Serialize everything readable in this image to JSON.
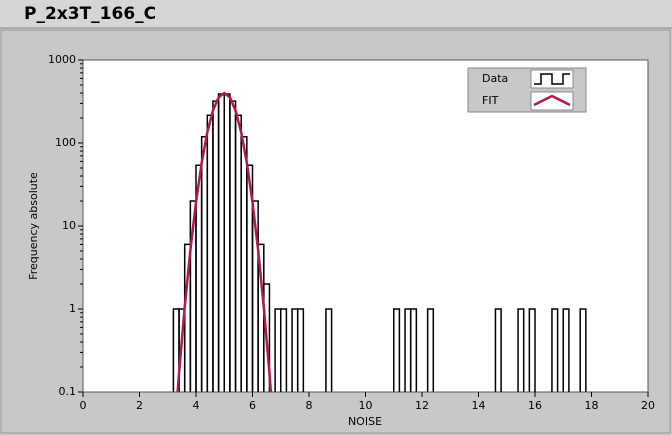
{
  "chart_data": {
    "type": "histogram",
    "title": "P_2x3T_166_C",
    "x_label": "NOISE",
    "y_label": "Frequency absolute",
    "xlim": [
      0,
      20
    ],
    "xticks": [
      0,
      2,
      4,
      6,
      8,
      10,
      12,
      14,
      16,
      18,
      20
    ],
    "ylim": [
      0.1,
      1000
    ],
    "yticks": [
      0.1,
      1,
      10,
      100,
      1000
    ],
    "log_y": true,
    "legend": "top-right",
    "series": [
      {
        "name": "Data",
        "color": "#000000",
        "bins": [
          3.2,
          3.4,
          3.6,
          3.8,
          4.0,
          4.2,
          4.4,
          4.6,
          4.8,
          5.0,
          5.2,
          5.4,
          5.6,
          5.8,
          6.0,
          6.2,
          6.4,
          6.6,
          6.8,
          7.0,
          7.2,
          7.4,
          7.6,
          7.8,
          8.0,
          8.2,
          8.4,
          8.6,
          8.8,
          9.0,
          9.2,
          9.4,
          9.6,
          9.8,
          10.0,
          10.2,
          10.4,
          10.6,
          10.8,
          11.0,
          11.2,
          11.4,
          11.6,
          11.8,
          12.0,
          12.2,
          12.4,
          12.6,
          12.8,
          13.0,
          13.2,
          13.4,
          13.6,
          13.8,
          14.0,
          14.2,
          14.4,
          14.6,
          14.8,
          15.0,
          15.2,
          15.4,
          15.6,
          15.8,
          16.0,
          16.2,
          16.4,
          16.6,
          16.8,
          17.0,
          17.2,
          17.4,
          17.6,
          17.8,
          18.0
        ],
        "values": [
          1,
          1,
          6,
          20,
          54,
          119,
          216,
          320,
          390,
          390,
          320,
          216,
          119,
          54,
          20,
          6,
          2,
          0,
          1,
          1,
          0,
          1,
          1,
          0,
          0,
          0,
          0,
          1,
          0,
          0,
          0,
          0,
          0,
          0,
          0,
          0,
          0,
          0,
          0,
          1,
          0,
          1,
          1,
          0,
          0,
          1,
          0,
          0,
          0,
          0,
          0,
          0,
          0,
          0,
          0,
          0,
          0,
          1,
          0,
          0,
          0,
          1,
          0,
          1,
          0,
          0,
          0,
          1,
          0,
          1,
          0,
          0,
          1,
          0
        ]
      },
      {
        "name": "FIT",
        "color": "#b0194a",
        "x": [
          3.35,
          3.4,
          3.6,
          3.8,
          4.0,
          4.2,
          4.4,
          4.6,
          4.8,
          5.0,
          5.2,
          5.4,
          5.6,
          5.8,
          6.0,
          6.2,
          6.4,
          6.6,
          6.65
        ],
        "values": [
          0.1,
          0.17,
          1.05,
          5.1,
          19.3,
          57.5,
          134,
          246,
          354,
          400,
          354,
          246,
          134,
          57.5,
          19.3,
          5.1,
          1.05,
          0.17,
          0.1
        ]
      }
    ]
  }
}
